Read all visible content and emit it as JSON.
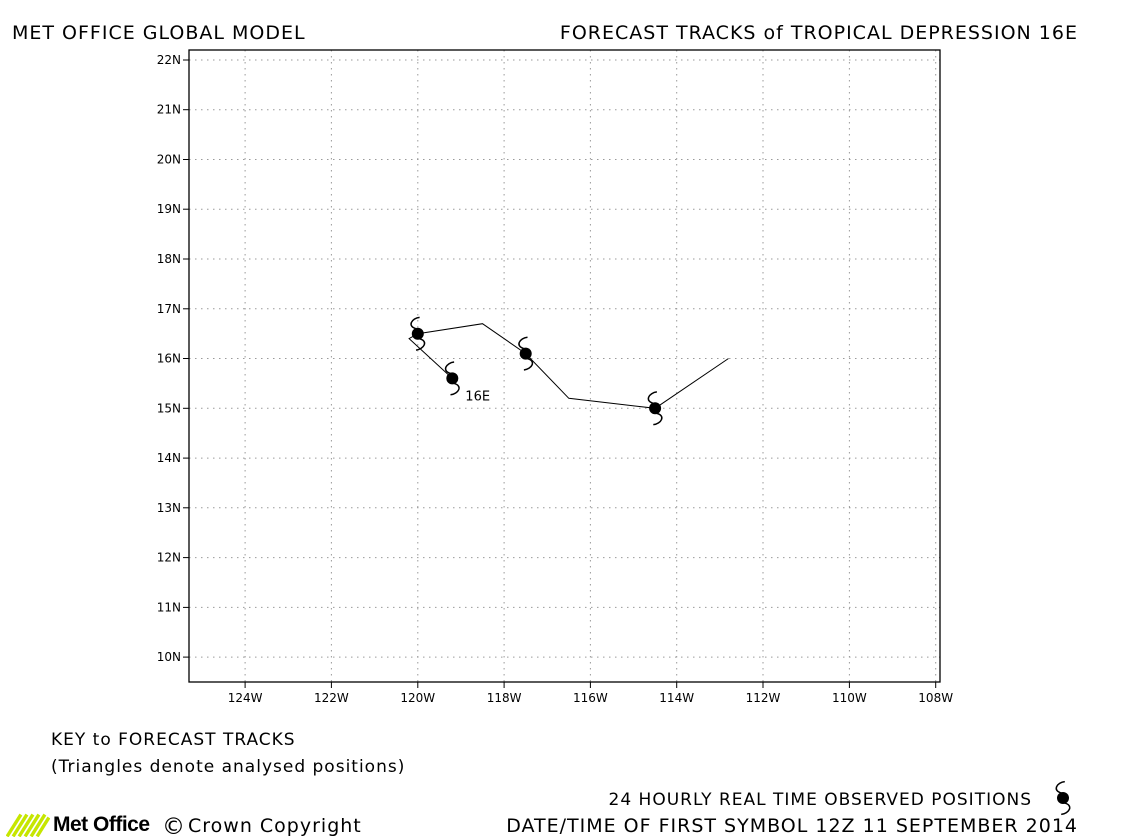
{
  "header": {
    "left": "MET OFFICE GLOBAL MODEL",
    "right": "FORECAST TRACKS of TROPICAL DEPRESSION 16E"
  },
  "chart_data": {
    "type": "line",
    "title": "FORECAST TRACKS of TROPICAL DEPRESSION 16E",
    "xlim": [
      -125.3,
      -107.9
    ],
    "ylim": [
      9.5,
      22.2
    ],
    "x_ticks": [
      -124,
      -122,
      -120,
      -118,
      -116,
      -114,
      -112,
      -110,
      -108
    ],
    "x_tick_labels": [
      "124W",
      "122W",
      "120W",
      "118W",
      "116W",
      "114W",
      "112W",
      "110W",
      "108W"
    ],
    "y_ticks": [
      10,
      11,
      12,
      13,
      14,
      15,
      16,
      17,
      18,
      19,
      20,
      21,
      22
    ],
    "y_tick_labels": [
      "10N",
      "11N",
      "12N",
      "13N",
      "14N",
      "15N",
      "16N",
      "17N",
      "18N",
      "19N",
      "20N",
      "21N",
      "22N"
    ],
    "grid": true,
    "series": [
      {
        "track": [
          {
            "lon": -112.8,
            "lat": 16.0
          },
          {
            "lon": -114.5,
            "lat": 15.0
          },
          {
            "lon": -116.5,
            "lat": 15.2
          },
          {
            "lon": -117.5,
            "lat": 16.1
          },
          {
            "lon": -118.5,
            "lat": 16.7
          },
          {
            "lon": -120.0,
            "lat": 16.5
          },
          {
            "lon": -120.2,
            "lat": 16.4
          },
          {
            "lon": -119.2,
            "lat": 15.6
          }
        ],
        "symbols": [
          {
            "lon": -114.5,
            "lat": 15.0
          },
          {
            "lon": -117.5,
            "lat": 16.1
          },
          {
            "lon": -120.0,
            "lat": 16.5
          },
          {
            "lon": -119.2,
            "lat": 15.6
          }
        ],
        "storm_label": "16E"
      }
    ]
  },
  "key": {
    "title": "KEY to FORECAST TRACKS",
    "note": "(Triangles denote analysed positions)"
  },
  "footer": {
    "observed": "24 HOURLY REAL TIME OBSERVED POSITIONS",
    "datetime": "DATE/TIME OF FIRST SYMBOL 12Z 11 SEPTEMBER 2014",
    "copyright": "Crown Copyright",
    "copyright_mark": "©",
    "logo_text": "Met Office",
    "logo_color": "#c6e600"
  }
}
